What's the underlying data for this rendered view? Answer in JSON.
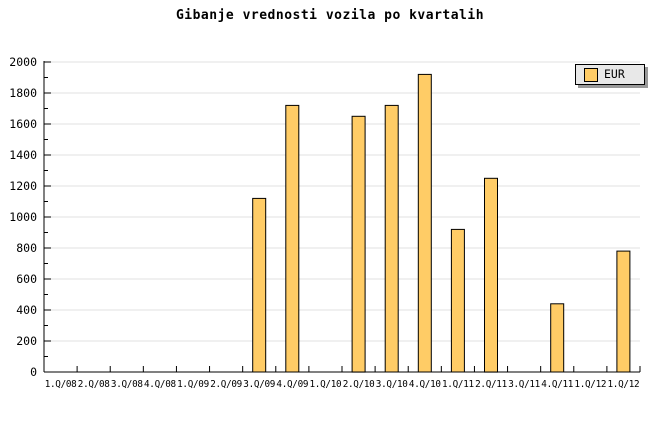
{
  "title": "Gibanje vrednosti vozila po kvartalih",
  "legend": {
    "label": "EUR"
  },
  "chart_data": {
    "type": "bar",
    "title": "Gibanje vrednosti vozila po kvartalih",
    "categories": [
      "1.Q/08",
      "2.Q/08",
      "3.Q/08",
      "4.Q/08",
      "1.Q/09",
      "2.Q/09",
      "3.Q/09",
      "4.Q/09",
      "1.Q/10",
      "2.Q/10",
      "3.Q/10",
      "4.Q/10",
      "1.Q/11",
      "2.Q/11",
      "3.Q/11",
      "4.Q/11",
      "1.Q/12",
      "1.Q/12"
    ],
    "series": [
      {
        "name": "EUR",
        "values": [
          null,
          null,
          null,
          null,
          null,
          null,
          1120,
          1720,
          null,
          1650,
          1720,
          1920,
          920,
          1250,
          null,
          440,
          null,
          780
        ]
      }
    ],
    "ylim": [
      0,
      2000
    ],
    "ytick_step": 200,
    "yminor_step": 100,
    "grid": "horizontal-major",
    "legend_position": "top-right",
    "colors": {
      "bar_fill": "#FFCC66",
      "bar_stroke": "#000000",
      "grid": "#E0E0E0",
      "axis": "#000000",
      "text": "#000000",
      "legend_bg": "#E8E8E8",
      "legend_shadow": "#999999",
      "background": "#FFFFFF"
    }
  }
}
